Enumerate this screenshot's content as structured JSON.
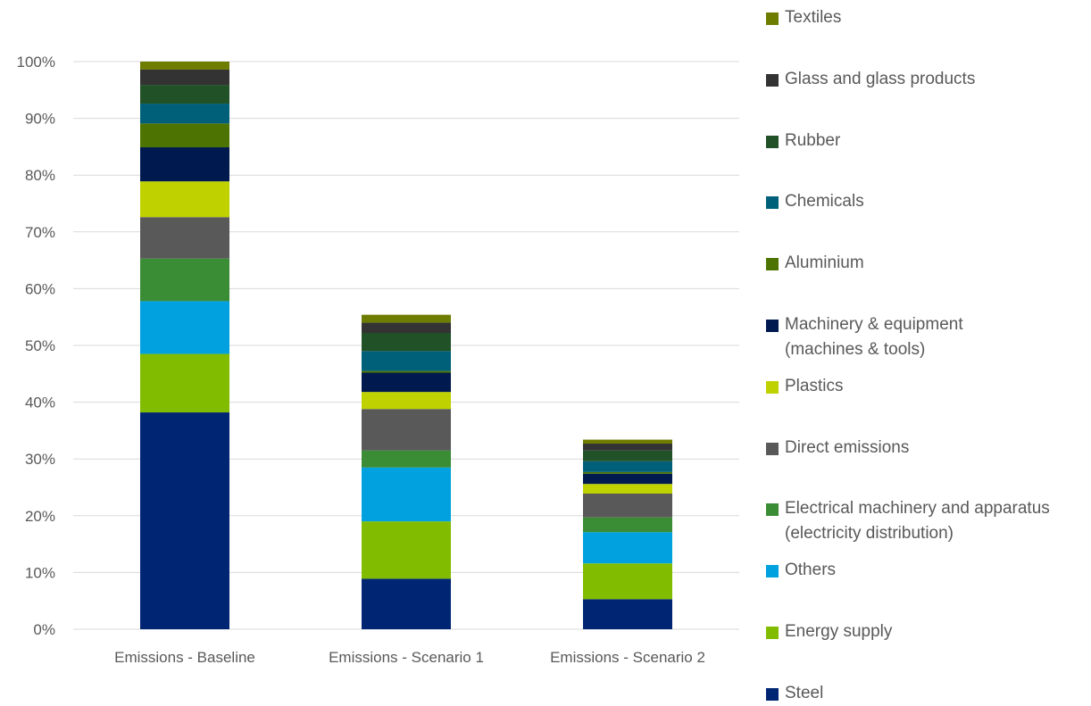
{
  "chart_data": {
    "type": "bar",
    "stacked": true,
    "categories": [
      "Emissions - Baseline",
      "Emissions - Scenario 1",
      "Emissions - Scenario 2"
    ],
    "ylim": [
      0,
      100
    ],
    "yticks": [
      "0%",
      "10%",
      "20%",
      "30%",
      "40%",
      "50%",
      "60%",
      "70%",
      "80%",
      "90%",
      "100%"
    ],
    "grid": true,
    "legend_position": "right",
    "series": [
      {
        "name": "Steel",
        "color": "#002673",
        "values": [
          38.2,
          8.9,
          5.3
        ]
      },
      {
        "name": "Energy supply",
        "color": "#82BC00",
        "values": [
          10.3,
          10.1,
          6.3
        ]
      },
      {
        "name": "Others",
        "color": "#00A1DE",
        "values": [
          9.3,
          9.5,
          5.5
        ]
      },
      {
        "name": "Electrical machinery and apparatus (electricity distribution)",
        "color": "#3A8C35",
        "values": [
          7.5,
          3.0,
          2.6
        ]
      },
      {
        "name": "Direct emissions",
        "color": "#595959",
        "values": [
          7.3,
          7.3,
          4.2
        ]
      },
      {
        "name": "Plastics",
        "color": "#BFD200",
        "values": [
          6.3,
          3.0,
          1.7
        ]
      },
      {
        "name": "Machinery & equipment (machines & tools)",
        "color": "#001A4F",
        "values": [
          6.0,
          3.4,
          1.8
        ]
      },
      {
        "name": "Aluminium",
        "color": "#4D7403",
        "values": [
          4.2,
          0.3,
          0.3
        ]
      },
      {
        "name": "Chemicals",
        "color": "#005F79",
        "values": [
          3.5,
          3.5,
          1.9
        ]
      },
      {
        "name": "Rubber",
        "color": "#215126",
        "values": [
          3.3,
          3.2,
          1.9
        ]
      },
      {
        "name": "Glass and glass products",
        "color": "#333333",
        "values": [
          2.7,
          1.8,
          1.2
        ]
      },
      {
        "name": "Textiles",
        "color": "#6E7C00",
        "values": [
          1.4,
          1.4,
          0.7
        ]
      }
    ]
  }
}
